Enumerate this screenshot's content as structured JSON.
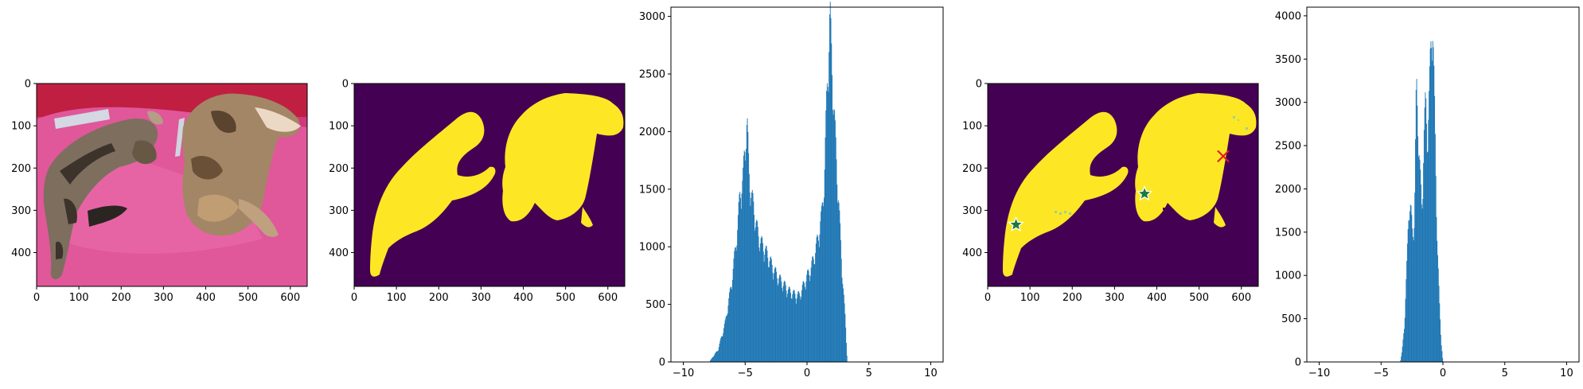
{
  "figure": {
    "colors": {
      "mask_background": "#440154",
      "mask_foreground": "#fde725",
      "histogram_bar": "#1f77b4",
      "positive_marker": "#1a7a3e",
      "negative_marker": "#e41a1c"
    }
  },
  "chart_data": [
    {
      "type": "image",
      "content": "cat-photo",
      "x_ticks": [
        "0",
        "100",
        "200",
        "300",
        "400",
        "500",
        "600"
      ],
      "y_ticks": [
        "0",
        "100",
        "200",
        "300",
        "400"
      ],
      "xlim": [
        0,
        640
      ],
      "ylim": [
        480,
        0
      ]
    },
    {
      "type": "heatmap",
      "content": "binary-mask",
      "x_ticks": [
        "0",
        "100",
        "200",
        "300",
        "400",
        "500",
        "600"
      ],
      "y_ticks": [
        "0",
        "100",
        "200",
        "300",
        "400"
      ],
      "xlim": [
        0,
        640
      ],
      "ylim": [
        480,
        0
      ]
    },
    {
      "type": "bar",
      "content": "histogram",
      "xlim": [
        -11,
        11
      ],
      "ylim": [
        0,
        3080
      ],
      "x_ticks": [
        "−10",
        "−5",
        "0",
        "5",
        "10"
      ],
      "y_ticks": [
        "0",
        "500",
        "1000",
        "1500",
        "2000",
        "2500",
        "3000"
      ],
      "bin_width": 0.05,
      "envelope": [
        [
          -7.9,
          0
        ],
        [
          -7.7,
          30
        ],
        [
          -7.5,
          60
        ],
        [
          -7.2,
          100
        ],
        [
          -7.0,
          180
        ],
        [
          -6.8,
          250
        ],
        [
          -6.6,
          340
        ],
        [
          -6.4,
          470
        ],
        [
          -6.2,
          600
        ],
        [
          -6.0,
          750
        ],
        [
          -5.8,
          950
        ],
        [
          -5.6,
          1150
        ],
        [
          -5.4,
          1450
        ],
        [
          -5.2,
          1500
        ],
        [
          -5.0,
          1850
        ],
        [
          -4.85,
          2030
        ],
        [
          -4.7,
          1600
        ],
        [
          -4.5,
          1400
        ],
        [
          -4.3,
          1300
        ],
        [
          -4.1,
          1150
        ],
        [
          -3.9,
          1050
        ],
        [
          -3.7,
          1000
        ],
        [
          -3.5,
          970
        ],
        [
          -3.3,
          920
        ],
        [
          -3.0,
          850
        ],
        [
          -2.7,
          780
        ],
        [
          -2.4,
          720
        ],
        [
          -2.1,
          680
        ],
        [
          -1.8,
          640
        ],
        [
          -1.5,
          600
        ],
        [
          -1.2,
          580
        ],
        [
          -0.9,
          560
        ],
        [
          -0.6,
          560
        ],
        [
          -0.3,
          640
        ],
        [
          0.0,
          720
        ],
        [
          0.3,
          780
        ],
        [
          0.6,
          900
        ],
        [
          0.9,
          1050
        ],
        [
          1.2,
          1250
        ],
        [
          1.4,
          1550
        ],
        [
          1.6,
          2250
        ],
        [
          1.75,
          2650
        ],
        [
          1.85,
          2930
        ],
        [
          1.95,
          2650
        ],
        [
          2.1,
          2300
        ],
        [
          2.3,
          1850
        ],
        [
          2.5,
          1450
        ],
        [
          2.7,
          1050
        ],
        [
          2.9,
          650
        ],
        [
          3.1,
          350
        ],
        [
          3.25,
          0
        ]
      ]
    },
    {
      "type": "heatmap",
      "content": "binary-mask-with-prompts",
      "x_ticks": [
        "0",
        "100",
        "200",
        "300",
        "400",
        "500",
        "600"
      ],
      "y_ticks": [
        "0",
        "100",
        "200",
        "300",
        "400"
      ],
      "xlim": [
        0,
        640
      ],
      "ylim": [
        480,
        0
      ],
      "positive_points": [
        [
          67,
          334
        ],
        [
          371,
          261
        ]
      ],
      "negative_points": [
        [
          557,
          172
        ]
      ]
    },
    {
      "type": "bar",
      "content": "histogram",
      "xlim": [
        -11,
        11
      ],
      "ylim": [
        0,
        4100
      ],
      "x_ticks": [
        "−10",
        "−5",
        "0",
        "5",
        "10"
      ],
      "y_ticks": [
        "0",
        "500",
        "1000",
        "1500",
        "2000",
        "2500",
        "3000",
        "3500",
        "4000"
      ],
      "bin_width": 0.05,
      "envelope": [
        [
          -3.45,
          0
        ],
        [
          -3.3,
          120
        ],
        [
          -3.1,
          450
        ],
        [
          -2.9,
          1150
        ],
        [
          -2.75,
          1800
        ],
        [
          -2.6,
          1700
        ],
        [
          -2.45,
          1400
        ],
        [
          -2.3,
          1650
        ],
        [
          -2.15,
          3100
        ],
        [
          -2.0,
          2650
        ],
        [
          -1.85,
          2100
        ],
        [
          -1.7,
          1650
        ],
        [
          -1.55,
          2500
        ],
        [
          -1.4,
          2900
        ],
        [
          -1.25,
          2500
        ],
        [
          -1.1,
          3000
        ],
        [
          -0.95,
          3650
        ],
        [
          -0.85,
          3910
        ],
        [
          -0.75,
          3300
        ],
        [
          -0.6,
          2300
        ],
        [
          -0.45,
          1300
        ],
        [
          -0.3,
          700
        ],
        [
          -0.15,
          250
        ],
        [
          0.0,
          0
        ]
      ]
    }
  ]
}
